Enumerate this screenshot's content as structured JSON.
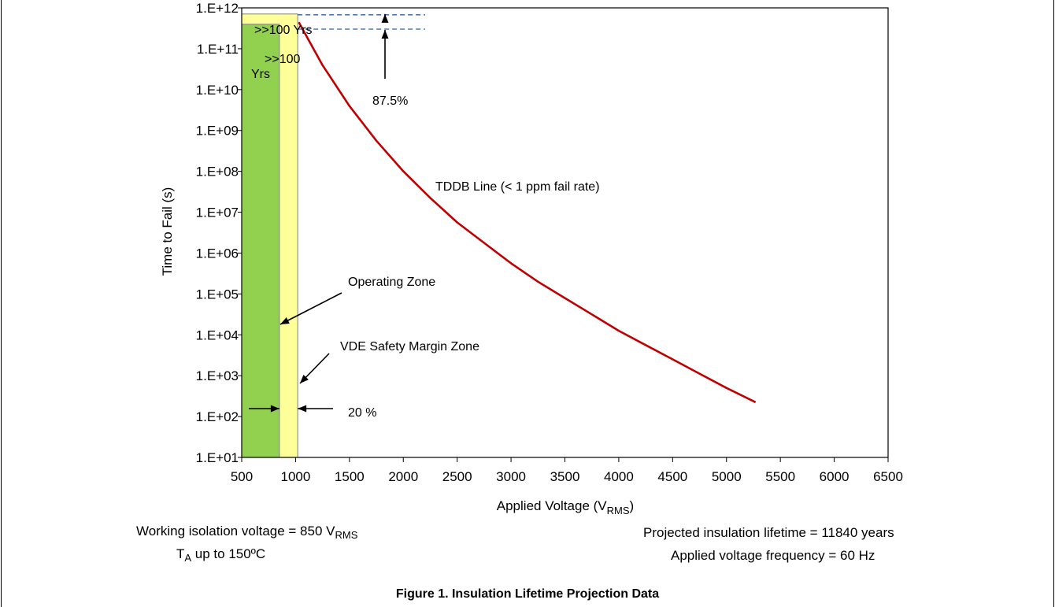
{
  "chart_data": {
    "type": "line",
    "xlabel": "Applied Voltage (V",
    "xlabel_sub": "RMS",
    "xlabel_end": ")",
    "ylabel": "Time to Fail (s)",
    "xlim": [
      500,
      6500
    ],
    "ylim_log10": [
      1,
      12
    ],
    "log_y": true,
    "grid": false,
    "x_ticks": [
      500,
      1000,
      1500,
      2000,
      2500,
      3000,
      3500,
      4000,
      4500,
      5000,
      5500,
      6000,
      6500
    ],
    "x_tick_labels": [
      "500",
      "1000",
      "1500",
      "2000",
      "2500",
      "3000",
      "3500",
      "4000",
      "4500",
      "5000",
      "5500",
      "6000",
      "6500"
    ],
    "y_ticks_log10": [
      1,
      2,
      3,
      4,
      5,
      6,
      7,
      8,
      9,
      10,
      11,
      12
    ],
    "y_tick_labels": [
      "1.E+01",
      "1.E+02",
      "1.E+03",
      "1.E+04",
      "1.E+05",
      "1.E+06",
      "1.E+07",
      "1.E+08",
      "1.E+09",
      "1.E+10",
      "1.E+11",
      "1.E+12"
    ],
    "series": [
      {
        "name": "TDDB Line (< 1 ppm fail rate)",
        "color": "#c00000",
        "x": [
          1030,
          1250,
          1500,
          1750,
          2000,
          2250,
          2500,
          2750,
          3000,
          3250,
          3500,
          3750,
          4000,
          4250,
          4500,
          4750,
          5000,
          5270
        ],
        "y_log10": [
          11.65,
          10.6,
          9.6,
          8.75,
          8.0,
          7.35,
          6.75,
          6.25,
          5.75,
          5.3,
          4.9,
          4.5,
          4.1,
          3.75,
          3.4,
          3.05,
          2.7,
          2.35
        ]
      }
    ],
    "zones": [
      {
        "name": "Operating Zone",
        "x_from": 500,
        "x_to": 850,
        "top_log10": 11.6,
        "color": "#92d050"
      },
      {
        "name": "VDE Safety Margin Zone",
        "x_from": 850,
        "x_to": 1020,
        "top_log10": 11.85,
        "color": "#ffff99"
      }
    ],
    "dashed_levels_log10": [
      11.83,
      11.48
    ],
    "annotations": {
      "outer_zone_label": ">>100 Yrs",
      "inner_zone_label_1": ">>100",
      "inner_zone_label_2": "Yrs",
      "margin_percent": "87.5%",
      "tddb_label": "TDDB Line (< 1 ppm fail rate)",
      "operating_zone": "Operating  Zone",
      "vde_zone": "VDE Safety Margin Zone",
      "width_percent": "20 %"
    }
  },
  "notes": {
    "working_voltage_prefix": "Working isolation voltage = 850 V",
    "working_voltage_sub": "RMS",
    "ta_prefix": "T",
    "ta_sub": "A",
    "ta_rest": " up to 150ºC",
    "lifetime": "Projected insulation lifetime = 11840 years",
    "frequency": "Applied voltage frequency = 60 Hz"
  },
  "caption": "Figure 1. Insulation Lifetime Projection Data"
}
